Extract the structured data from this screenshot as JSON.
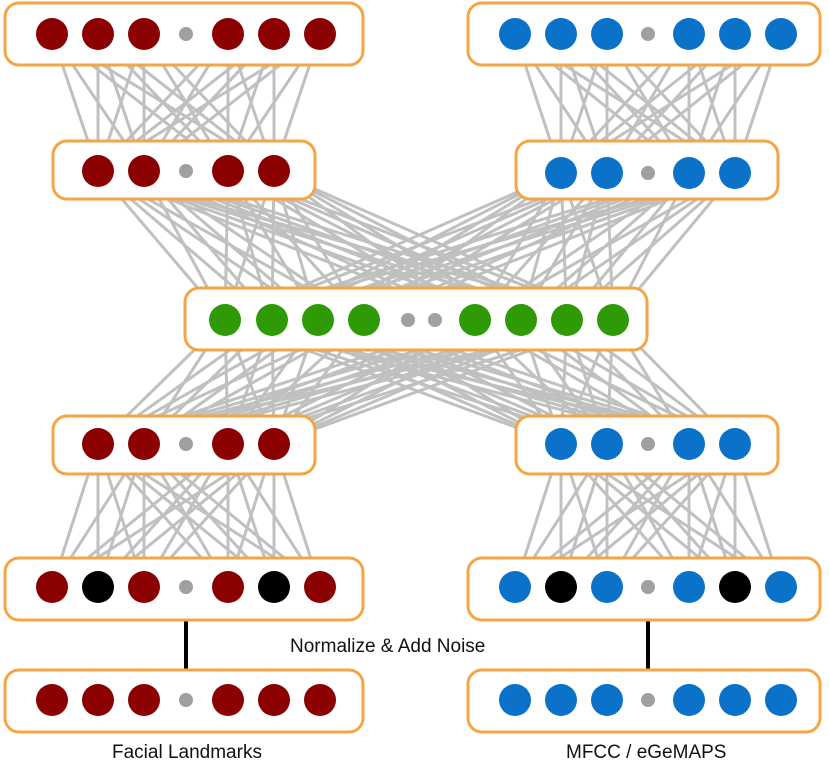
{
  "labels": {
    "left_input": "Facial Landmarks",
    "right_input": "MFCC / eGeMAPS",
    "process": "Normalize & Add Noise"
  },
  "colors": {
    "face_node": "#8b0000",
    "audio_node": "#0a72c9",
    "shared_node": "#2e9b06",
    "masked_node": "#000000",
    "dot_node": "#a0a0a0",
    "edge": "#c0c0c0",
    "layer_box": "#f4a544",
    "connector": "#000000"
  },
  "layers": [
    {
      "id": "face-out",
      "pattern": "NNN.NNN",
      "color": "face_node"
    },
    {
      "id": "face-hidden-top",
      "pattern": "NN.NN",
      "color": "face_node"
    },
    {
      "id": "shared",
      "pattern": "NNNN..NNNN",
      "color": "shared_node"
    },
    {
      "id": "face-hidden-bottom",
      "pattern": "NN.NN",
      "color": "face_node"
    },
    {
      "id": "face-noisy-input",
      "pattern": "NMN.NMN",
      "color": "face_node"
    },
    {
      "id": "face-input",
      "pattern": "NNN.NNN",
      "color": "face_node"
    },
    {
      "id": "audio-out",
      "pattern": "NNN.NNN",
      "color": "audio_node"
    },
    {
      "id": "audio-hidden-top",
      "pattern": "NN.NN",
      "color": "audio_node"
    },
    {
      "id": "audio-hidden-bottom",
      "pattern": "NN.NN",
      "color": "audio_node"
    },
    {
      "id": "audio-noisy-input",
      "pattern": "NMN.NMN",
      "color": "audio_node"
    },
    {
      "id": "audio-input",
      "pattern": "NNN.NNN",
      "color": "audio_node"
    }
  ],
  "connections": [
    [
      "face-out",
      "face-hidden-top"
    ],
    [
      "audio-out",
      "audio-hidden-top"
    ],
    [
      "face-hidden-top",
      "shared"
    ],
    [
      "audio-hidden-top",
      "shared"
    ],
    [
      "shared",
      "face-hidden-bottom"
    ],
    [
      "shared",
      "audio-hidden-bottom"
    ],
    [
      "face-hidden-bottom",
      "face-noisy-input"
    ],
    [
      "audio-hidden-bottom",
      "audio-noisy-input"
    ]
  ],
  "links": [
    [
      "face-noisy-input",
      "face-input"
    ],
    [
      "audio-noisy-input",
      "audio-input"
    ]
  ]
}
